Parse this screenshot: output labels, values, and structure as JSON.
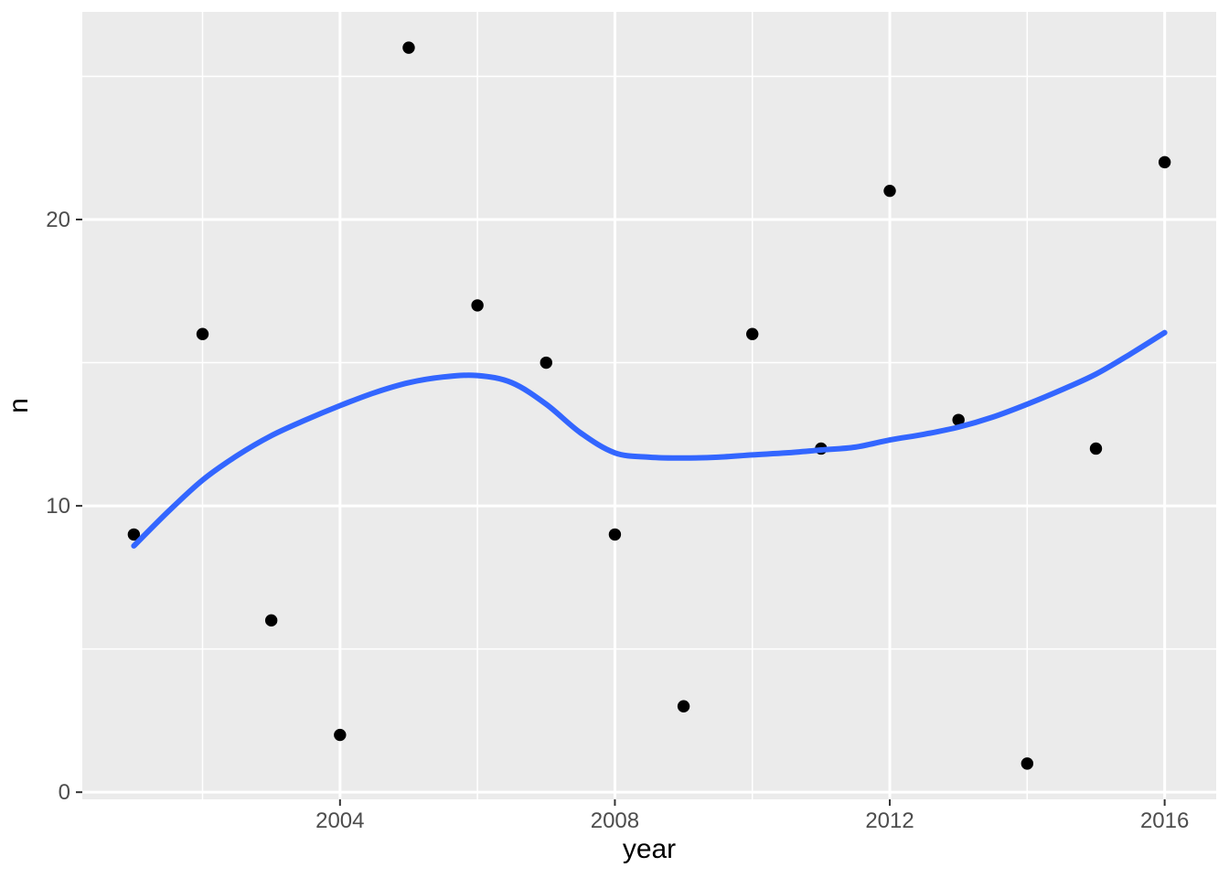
{
  "figure": {
    "background_color": "#FFFFFF"
  },
  "chart_data": {
    "type": "scatter",
    "title": "",
    "xlabel": "year",
    "ylabel": "n",
    "categories": [
      2001,
      2002,
      2003,
      2004,
      2005,
      2006,
      2007,
      2008,
      2009,
      2010,
      2011,
      2012,
      2013,
      2014,
      2015,
      2016
    ],
    "points": {
      "x": [
        2001,
        2002,
        2003,
        2004,
        2005,
        2006,
        2007,
        2008,
        2009,
        2010,
        2011,
        2012,
        2013,
        2014,
        2015,
        2016
      ],
      "y": [
        9,
        16,
        6,
        2,
        26,
        17,
        15,
        9,
        3,
        16,
        12,
        21,
        13,
        1,
        12,
        22
      ]
    },
    "smooth_line": {
      "name": "loess-smooth",
      "x": [
        2001,
        2001.5,
        2002,
        2002.5,
        2003,
        2003.5,
        2004,
        2004.5,
        2005,
        2005.5,
        2006,
        2006.5,
        2007,
        2007.5,
        2008,
        2008.5,
        2009,
        2009.5,
        2010,
        2010.5,
        2011,
        2011.5,
        2012,
        2012.5,
        2013,
        2013.5,
        2014,
        2014.5,
        2015,
        2015.5,
        2016
      ],
      "y": [
        8.6,
        9.8,
        10.9,
        11.75,
        12.45,
        13.0,
        13.5,
        13.95,
        14.3,
        14.5,
        14.55,
        14.3,
        13.55,
        12.55,
        11.85,
        11.7,
        11.67,
        11.7,
        11.78,
        11.85,
        11.95,
        12.05,
        12.3,
        12.5,
        12.75,
        13.1,
        13.55,
        14.05,
        14.6,
        15.3,
        16.05
      ]
    },
    "xlim": [
      2000.25,
      2016.75
    ],
    "ylim": [
      -0.25,
      27.25
    ],
    "x_major_ticks": [
      2004,
      2008,
      2012,
      2016
    ],
    "x_minor_gridlines": [
      2002,
      2006,
      2010,
      2014
    ],
    "y_major_ticks": [
      0,
      10,
      20
    ],
    "y_minor_gridlines": [
      5,
      15,
      25
    ],
    "grid": "on",
    "legend_position": "none",
    "colors": {
      "panel_background": "#EBEBEB",
      "gridline_major": "#FFFFFF",
      "gridline_minor": "#FFFFFF",
      "point": "#000000",
      "smooth_line": "#3366FF",
      "tick_mark": "#333333",
      "tick_label": "#4D4D4D",
      "axis_title": "#000000"
    }
  }
}
